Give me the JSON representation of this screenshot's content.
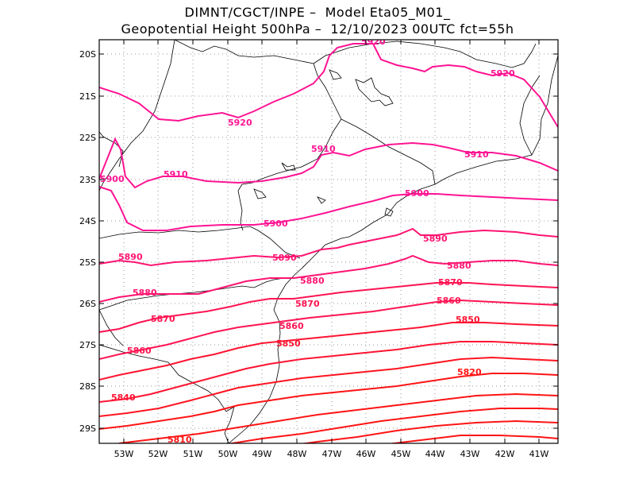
{
  "header": {
    "title_line1": "DIMNT/CGCT/INPE –  Model Eta05_M01_",
    "title_line2": "Geopotential Height 500hPa –  12/10/2023 00UTC fct=55h"
  },
  "map": {
    "lon_range": [
      -53.6,
      -40.5
    ],
    "lat_range": [
      -29.4,
      -19.7
    ],
    "y_axis_labels": [
      "20S",
      "21S",
      "22S",
      "23S",
      "24S",
      "25S",
      "26S",
      "27S",
      "28S",
      "29S"
    ],
    "x_axis_labels": [
      "53W",
      "52W",
      "51W",
      "50W",
      "49W",
      "48W",
      "47W",
      "46W",
      "45W",
      "44W",
      "43W",
      "42W",
      "41W"
    ],
    "contour_labels": [
      {
        "text": "5920",
        "color": "#ff1493"
      },
      {
        "text": "5920",
        "color": "#ff1493"
      },
      {
        "text": "5920",
        "color": "#ff1493"
      },
      {
        "text": "5910",
        "color": "#ff1493"
      },
      {
        "text": "5910",
        "color": "#ff1493"
      },
      {
        "text": "5910",
        "color": "#ff1493"
      },
      {
        "text": "5900",
        "color": "#ff1493"
      },
      {
        "text": "5900",
        "color": "#ff1493"
      },
      {
        "text": "5900",
        "color": "#ff1493"
      },
      {
        "text": "5890",
        "color": "#ff1471"
      },
      {
        "text": "5890",
        "color": "#ff1471"
      },
      {
        "text": "5890",
        "color": "#ff1471"
      },
      {
        "text": "5880",
        "color": "#ff1471"
      },
      {
        "text": "5880",
        "color": "#ff1471"
      },
      {
        "text": "5880",
        "color": "#ff1471"
      },
      {
        "text": "5870",
        "color": "#ff1452"
      },
      {
        "text": "5870",
        "color": "#ff1452"
      },
      {
        "text": "5870",
        "color": "#ff1452"
      },
      {
        "text": "5860",
        "color": "#ff1452"
      },
      {
        "text": "5860",
        "color": "#ff1452"
      },
      {
        "text": "5860",
        "color": "#ff1452"
      },
      {
        "text": "5850",
        "color": "#ff1432"
      },
      {
        "text": "5850",
        "color": "#ff1432"
      },
      {
        "text": "5840",
        "color": "#ff1432"
      },
      {
        "text": "5820",
        "color": "#ff1414"
      },
      {
        "text": "5810",
        "color": "#ff1414"
      }
    ]
  },
  "colors": {
    "high": "#ff1493",
    "mid": "#ff1460",
    "low": "#ff1414",
    "coast": "#000000",
    "grid": "#999999"
  }
}
